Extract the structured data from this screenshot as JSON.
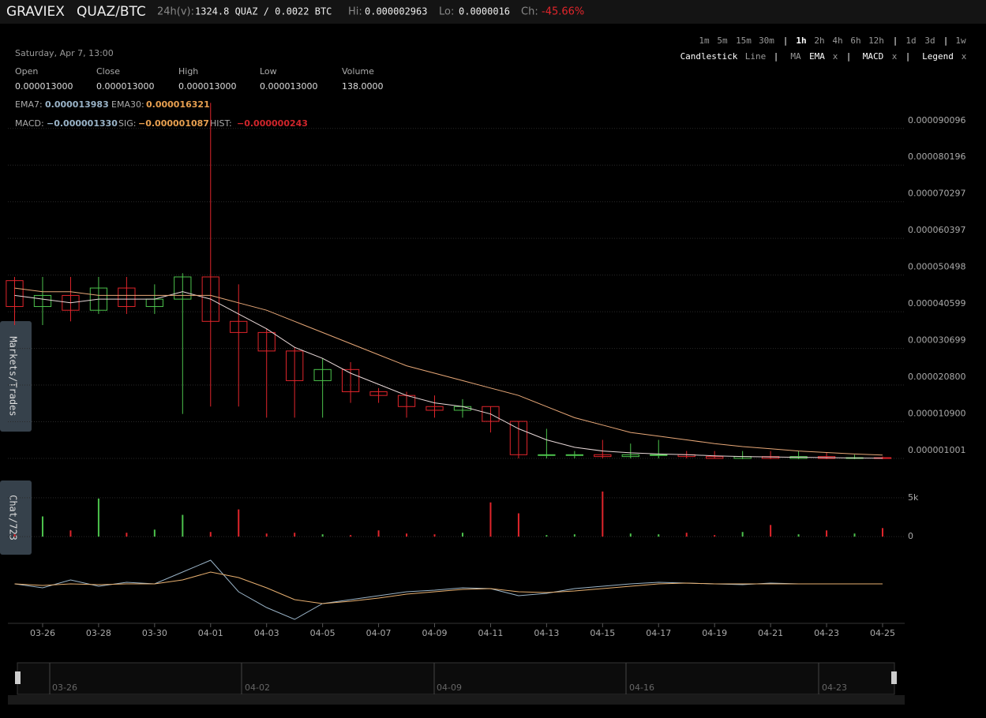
{
  "header": {
    "exchange": "GRAVIEX",
    "pair": "QUAZ/BTC",
    "volume_label": "24h(v):",
    "volume": "1324.8 QUAZ / 0.0022 BTC",
    "hi_label": "Hi:",
    "hi": "0.000002963",
    "lo_label": "Lo:",
    "lo": "0.0000016",
    "ch_label": "Ch:",
    "ch": "-45.66%"
  },
  "toolbar": {
    "intervals": [
      "1m",
      "5m",
      "15m",
      "30m",
      "1h",
      "2h",
      "4h",
      "6h",
      "12h",
      "1d",
      "3d",
      "1w"
    ],
    "chart_types": [
      "Candlestick",
      "Line"
    ],
    "indicators": [
      "MA",
      "EMA",
      "x",
      "MACD",
      "x",
      "Legend",
      "x"
    ]
  },
  "legend": {
    "date": "Saturday, Apr 7, 13:00",
    "fields": [
      {
        "label": "Open",
        "value": "0.000013000"
      },
      {
        "label": "Close",
        "value": "0.000013000"
      },
      {
        "label": "High",
        "value": "0.000013000"
      },
      {
        "label": "Low",
        "value": "0.000013000"
      },
      {
        "label": "Volume",
        "value": "138.0000"
      }
    ],
    "ema": [
      {
        "label": "EMA7:",
        "value": "0.000013983"
      },
      {
        "label": "EMA30:",
        "value": "0.000016321"
      }
    ],
    "macd": [
      {
        "label": "MACD:",
        "value": "−0.000001330"
      },
      {
        "label": "SIG:",
        "value": "−0.000001087"
      },
      {
        "label": "HIST:",
        "value": "−0.000000243"
      }
    ]
  },
  "side_tabs": [
    "Markets/Trades",
    "Chat/723"
  ],
  "navigator": {
    "labels": [
      "03-26",
      "04-02",
      "04-09",
      "04-16",
      "04-23"
    ]
  },
  "chart_data": [
    {
      "type": "candlestick",
      "x": [
        84,
        85,
        86,
        87,
        88,
        89,
        90,
        91,
        92,
        93,
        94,
        95,
        96,
        97,
        98,
        99,
        100,
        101,
        102,
        103,
        104,
        105,
        106,
        107,
        108,
        109,
        110,
        111,
        112,
        113,
        114,
        115
      ],
      "open": [
        4.9e-05,
        4.2e-05,
        4.5e-05,
        4.1e-05,
        4.7e-05,
        4.2e-05,
        4.4e-05,
        5e-05,
        3.8e-05,
        3.5e-05,
        3e-05,
        2.2e-05,
        2.5e-05,
        1.9e-05,
        1.8e-05,
        1.5e-05,
        1.4e-05,
        1.5e-05,
        1.1e-05,
        2e-06,
        2e-06,
        2e-06,
        1.5e-06,
        2e-06,
        2e-06,
        1.5e-06,
        1e-06,
        1.5e-06,
        1e-06,
        1.5e-06,
        1e-06,
        1.2e-06
      ],
      "high": [
        5e-05,
        5e-05,
        5e-05,
        5e-05,
        5e-05,
        4.8e-05,
        5.1e-05,
        9.7e-05,
        4.8e-05,
        3.6e-05,
        3.1e-05,
        2.8e-05,
        2.7e-05,
        2e-05,
        1.9e-05,
        1.8e-05,
        1.7e-05,
        1.5e-05,
        1.1e-05,
        9e-06,
        3e-06,
        6e-06,
        5e-06,
        6e-06,
        3e-06,
        3e-06,
        3e-06,
        3e-06,
        3e-06,
        2.5e-06,
        2e-06,
        1.5e-06
      ],
      "low": [
        3.7e-05,
        3.7e-05,
        3.8e-05,
        4e-05,
        4e-05,
        4e-05,
        1.3e-05,
        1.5e-05,
        1.5e-05,
        1.2e-05,
        1.2e-05,
        1.2e-05,
        1.6e-05,
        1.6e-05,
        1.2e-05,
        1.2e-05,
        1.2e-05,
        8e-06,
        1e-06,
        1e-06,
        1e-06,
        1e-06,
        1e-06,
        1e-06,
        1e-06,
        1e-06,
        8e-07,
        8e-07,
        8e-07,
        8e-07,
        8e-07,
        8e-07
      ],
      "close": [
        4.2e-05,
        4.5e-05,
        4.1e-05,
        4.7e-05,
        4.2e-05,
        4.4e-05,
        5e-05,
        3.8e-05,
        3.5e-05,
        3e-05,
        2.2e-05,
        2.5e-05,
        1.9e-05,
        1.8e-05,
        1.5e-05,
        1.4e-05,
        1.5e-05,
        1.1e-05,
        2e-06,
        2e-06,
        2e-06,
        1.5e-06,
        2e-06,
        2e-06,
        1.5e-06,
        1e-06,
        1.5e-06,
        1e-06,
        1.5e-06,
        1e-06,
        1.2e-06,
        1e-06
      ],
      "up_color": "#4cc24c",
      "down_color": "#e0252b",
      "series": [
        {
          "name": "EMA7",
          "color": "#e8d8d8",
          "values": [
            4.5e-05,
            4.4e-05,
            4.3e-05,
            4.4e-05,
            4.4e-05,
            4.4e-05,
            4.6e-05,
            4.4e-05,
            4e-05,
            3.6e-05,
            3.1e-05,
            2.8e-05,
            2.4e-05,
            2.1e-05,
            1.8e-05,
            1.6e-05,
            1.5e-05,
            1.3e-05,
            9e-06,
            6e-06,
            4e-06,
            3e-06,
            2.5e-06,
            2.2e-06,
            2e-06,
            1.7e-06,
            1.5e-06,
            1.4e-06,
            1.3e-06,
            1.2e-06,
            1.1e-06,
            1.05e-06
          ]
        },
        {
          "name": "EMA30",
          "color": "#e8a878",
          "values": [
            4.7e-05,
            4.6e-05,
            4.6e-05,
            4.5e-05,
            4.5e-05,
            4.5e-05,
            4.5e-05,
            4.5e-05,
            4.3e-05,
            4.1e-05,
            3.8e-05,
            3.5e-05,
            3.2e-05,
            2.9e-05,
            2.6e-05,
            2.4e-05,
            2.2e-05,
            2e-05,
            1.8e-05,
            1.5e-05,
            1.2e-05,
            1e-05,
            8e-06,
            7e-06,
            6e-06,
            5e-06,
            4.2e-06,
            3.6e-06,
            3e-06,
            2.6e-06,
            2.2e-06,
            1.9e-06
          ]
        }
      ],
      "xlim": [
        83.76,
        115.79
      ],
      "xticks": [
        {
          "value": 85,
          "label": "03-26"
        },
        {
          "value": 87,
          "label": "03-28"
        },
        {
          "value": 89,
          "label": "03-30"
        },
        {
          "value": 91,
          "label": "04-01"
        },
        {
          "value": 93,
          "label": "04-03"
        },
        {
          "value": 95,
          "label": "04-05"
        },
        {
          "value": 97,
          "label": "04-07"
        },
        {
          "value": 99,
          "label": "04-09"
        },
        {
          "value": 101,
          "label": "04-11"
        },
        {
          "value": 103,
          "label": "04-13"
        },
        {
          "value": 105,
          "label": "04-15"
        },
        {
          "value": 107,
          "label": "04-17"
        },
        {
          "value": 109,
          "label": "04-19"
        },
        {
          "value": 111,
          "label": "04-21"
        },
        {
          "value": 113,
          "label": "04-23"
        },
        {
          "value": 115,
          "label": "04-25"
        }
      ],
      "ylim": [
        -9.2e-07,
        9.75e-05
      ],
      "yticks": [
        1.001e-06,
        {
          "value": 1.09e-05,
          "label": "0.000010900"
        },
        {
          "value": 2.08e-05,
          "label": "0.000020800"
        },
        3.0699e-05,
        4.0599e-05,
        5.0498e-05,
        6.0397e-05,
        7.0297e-05,
        8.0196e-05,
        9.0096e-05
      ],
      "grid": true
    },
    {
      "type": "bar",
      "x": [
        84,
        85,
        86,
        87,
        88,
        89,
        90,
        91,
        92,
        93,
        94,
        95,
        96,
        97,
        98,
        99,
        100,
        101,
        102,
        103,
        104,
        105,
        106,
        107,
        108,
        109,
        110,
        111,
        112,
        113,
        114,
        115
      ],
      "values": [
        300,
        2600,
        800,
        4900,
        500,
        900,
        2800,
        600,
        3500,
        400,
        500,
        300,
        200,
        800,
        400,
        300,
        500,
        4400,
        3000,
        200,
        300,
        5800,
        400,
        300,
        500,
        200,
        600,
        1500,
        300,
        800,
        400,
        1100
      ],
      "ylim": [
        -1000,
        6100
      ],
      "yticks": [
        0,
        {
          "value": 5000,
          "label": "5k"
        }
      ]
    },
    {
      "type": "line",
      "x": [
        84,
        85,
        86,
        87,
        88,
        89,
        90,
        91,
        92,
        93,
        94,
        95,
        96,
        97,
        98,
        99,
        100,
        101,
        102,
        103,
        104,
        105,
        106,
        107,
        108,
        109,
        110,
        111,
        112,
        113,
        114,
        115
      ],
      "series": [
        {
          "name": "MACD",
          "color": "#9ab4c8",
          "values": [
            0,
            -5e-07,
            5e-07,
            -3e-07,
            2e-07,
            0,
            1.5e-06,
            3e-06,
            -1e-06,
            -3e-06,
            -4.5e-06,
            -2.5e-06,
            -2e-06,
            -1.5e-06,
            -1e-06,
            -8e-07,
            -5e-07,
            -6e-07,
            -1.5e-06,
            -1.2e-06,
            -6e-07,
            -3e-07,
            0,
            2e-07,
            1e-07,
            0,
            -1e-07,
            1e-07,
            0,
            0,
            0,
            0
          ]
        },
        {
          "name": "SIG",
          "color": "#e8b070",
          "values": [
            0,
            -2e-07,
            0,
            -1e-07,
            0,
            0,
            5e-07,
            1.5e-06,
            8e-07,
            -5e-07,
            -2e-06,
            -2.5e-06,
            -2.2e-06,
            -1.8e-06,
            -1.3e-06,
            -1e-06,
            -7e-07,
            -6e-07,
            -1e-06,
            -1.1e-06,
            -9e-07,
            -6e-07,
            -3e-07,
            0,
            1e-07,
            0,
            0,
            0,
            0,
            0,
            0,
            0
          ]
        }
      ],
      "ylim": [
        -5e-06,
        4e-06
      ]
    }
  ]
}
